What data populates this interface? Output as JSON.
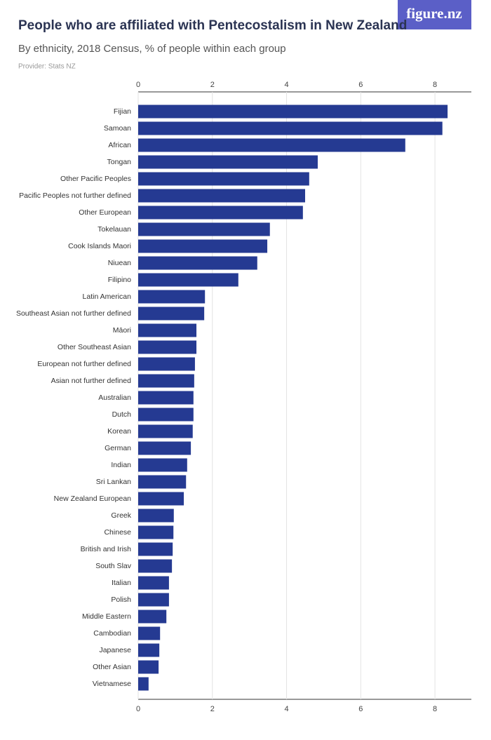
{
  "chart_data": {
    "type": "bar",
    "orientation": "horizontal",
    "title": "People who are affiliated with Pentecostalism in New Zealand",
    "subtitle": "By ethnicity, 2018 Census, % of people within each group",
    "source": "Provider: Stats NZ",
    "logo": "figure.nz",
    "color": "#253a92",
    "categories": [
      "Fijian",
      "Samoan",
      "African",
      "Tongan",
      "Other Pacific Peoples",
      "Pacific Peoples not further defined",
      "Other European",
      "Tokelauan",
      "Cook Islands Maori",
      "Niuean",
      "Filipino",
      "Latin American",
      "Southeast Asian not further defined",
      "Māori",
      "Other Southeast Asian",
      "European not further defined",
      "Asian not further defined",
      "Australian",
      "Dutch",
      "Korean",
      "German",
      "Indian",
      "Sri Lankan",
      "New Zealand European",
      "Greek",
      "Chinese",
      "British and Irish",
      "South Slav",
      "Italian",
      "Polish",
      "Middle Eastern",
      "Cambodian",
      "Japanese",
      "Other Asian",
      "Vietnamese"
    ],
    "values": [
      8.34,
      8.2,
      7.2,
      4.84,
      4.61,
      4.5,
      4.44,
      3.55,
      3.48,
      3.21,
      2.7,
      1.8,
      1.78,
      1.57,
      1.57,
      1.53,
      1.51,
      1.49,
      1.49,
      1.47,
      1.42,
      1.32,
      1.29,
      1.23,
      0.96,
      0.95,
      0.93,
      0.91,
      0.83,
      0.83,
      0.76,
      0.59,
      0.57,
      0.55,
      0.28
    ],
    "xlim": [
      0,
      9
    ],
    "xticks": [
      0,
      2,
      4,
      6,
      8
    ],
    "grid": true
  }
}
